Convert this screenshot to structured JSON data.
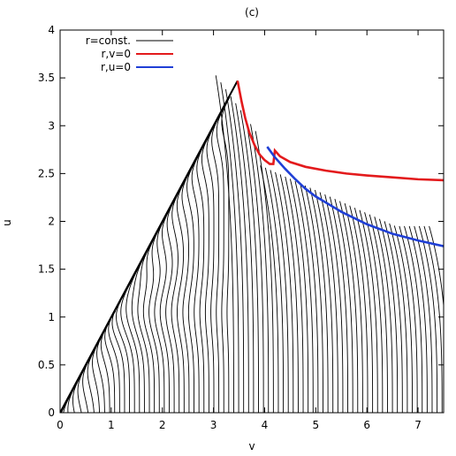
{
  "chart_data": {
    "type": "line",
    "title": "(c)",
    "xlabel": "v",
    "ylabel": "u",
    "xlim": [
      0,
      7.5
    ],
    "ylim": [
      0,
      4
    ],
    "x_ticks": [
      0,
      1,
      2,
      3,
      4,
      5,
      6,
      7
    ],
    "x_tick_labels": [
      "0",
      "1",
      "2",
      "3",
      "4",
      "5",
      "6",
      "7"
    ],
    "y_ticks": [
      0,
      0.5,
      1,
      1.5,
      2,
      2.5,
      3,
      3.5,
      4
    ],
    "y_tick_labels": [
      "0",
      "0.5",
      "1",
      "1.5",
      "2",
      "2.5",
      "3",
      "3.5",
      "4"
    ],
    "grid": false,
    "legend_position": "top-left",
    "colors": {
      "r_const": "#000000",
      "r_v_zero": "#e31a1c",
      "r_u_zero": "#1f3fd6"
    },
    "series": [
      {
        "name": "r=const.",
        "color": "#000000",
        "description_of_family": "contours",
        "boundary": [
          [
            0,
            0
          ],
          [
            3.47,
            3.47
          ]
        ]
      },
      {
        "name": "r,v=0",
        "color": "#e31a1c",
        "points": [
          [
            3.47,
            3.47
          ],
          [
            3.55,
            3.25
          ],
          [
            3.62,
            3.08
          ],
          [
            3.7,
            2.93
          ],
          [
            3.8,
            2.8
          ],
          [
            3.9,
            2.7
          ],
          [
            4.0,
            2.64
          ],
          [
            4.1,
            2.6
          ],
          [
            4.17,
            2.6
          ],
          [
            4.2,
            2.74
          ],
          [
            4.3,
            2.68
          ],
          [
            4.5,
            2.62
          ],
          [
            4.8,
            2.57
          ],
          [
            5.2,
            2.53
          ],
          [
            5.6,
            2.5
          ],
          [
            6.0,
            2.48
          ],
          [
            6.5,
            2.46
          ],
          [
            7.0,
            2.44
          ],
          [
            7.5,
            2.43
          ]
        ]
      },
      {
        "name": "r,u=0",
        "color": "#1f3fd6",
        "points": [
          [
            4.05,
            2.78
          ],
          [
            4.2,
            2.67
          ],
          [
            4.4,
            2.55
          ],
          [
            4.6,
            2.44
          ],
          [
            4.8,
            2.34
          ],
          [
            5.0,
            2.26
          ],
          [
            5.5,
            2.1
          ],
          [
            6.0,
            1.97
          ],
          [
            6.5,
            1.87
          ],
          [
            7.0,
            1.8
          ],
          [
            7.5,
            1.74
          ]
        ]
      }
    ]
  }
}
